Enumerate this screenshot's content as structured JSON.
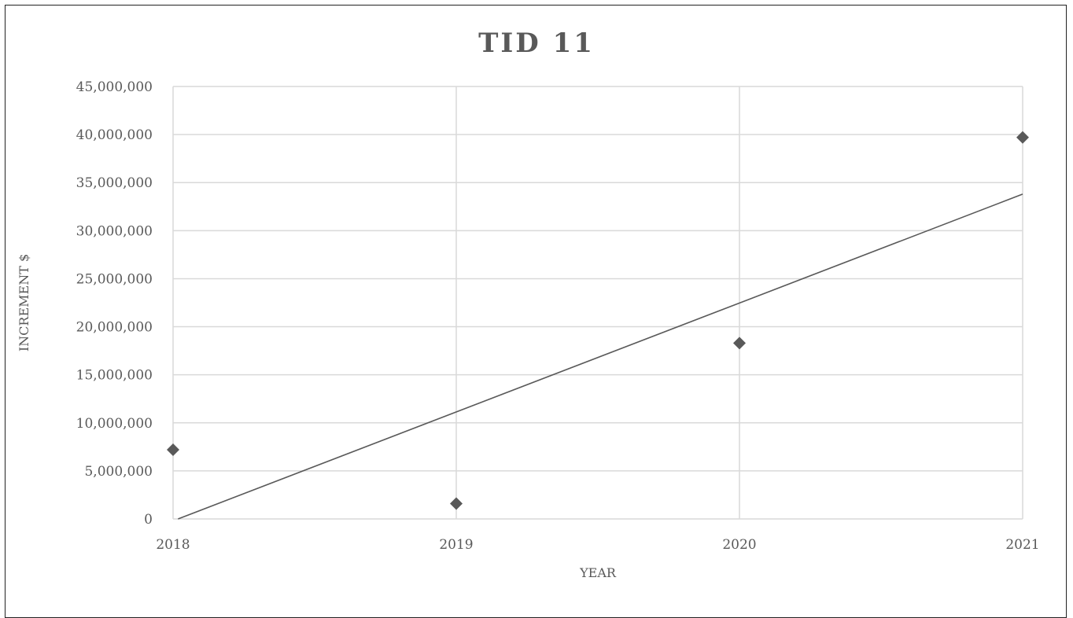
{
  "chart_data": {
    "type": "scatter",
    "title": "TID 11",
    "xlabel": "YEAR",
    "ylabel": "INCREMENT $",
    "x": [
      2018,
      2019,
      2020,
      2021
    ],
    "x_ticks": [
      "2018",
      "2019",
      "2020",
      "2021"
    ],
    "xlim": [
      2018,
      2021
    ],
    "ylim": [
      0,
      45000000
    ],
    "y_ticks": [
      "0",
      "5,000,000",
      "10,000,000",
      "15,000,000",
      "20,000,000",
      "25,000,000",
      "30,000,000",
      "35,000,000",
      "40,000,000",
      "45,000,000"
    ],
    "series": [
      {
        "marker": "diamond",
        "values": [
          7200000,
          1600000,
          18300000,
          39700000
        ]
      }
    ],
    "trendline": {
      "type": "linear",
      "x": [
        2018,
        2021
      ],
      "y": [
        -200000,
        33800000
      ]
    },
    "grid": true,
    "legend": "none",
    "colors": {
      "marker": "#595959",
      "trendline": "#595959",
      "grid": "#d9d9d9",
      "text": "#595959",
      "title": "#595959"
    }
  }
}
